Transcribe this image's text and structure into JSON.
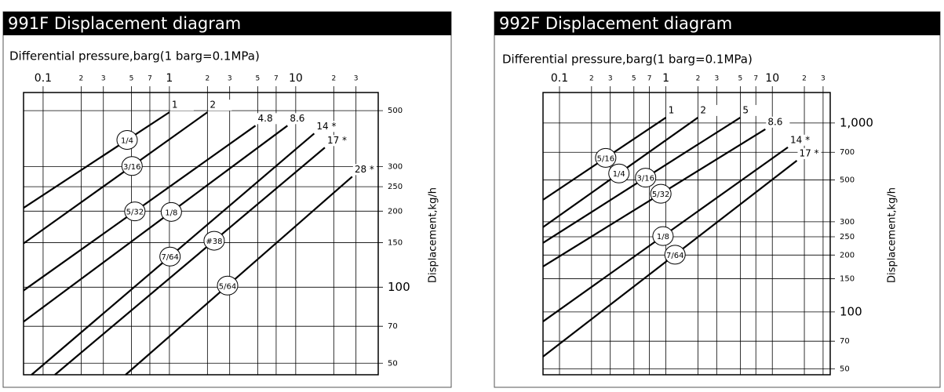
{
  "chart_data": [
    {
      "type": "line",
      "title": "991F Displacement diagram",
      "x_label": "Differential pressure,barg(1 barg=0.1MPa)",
      "y_label": "Displacement,kg/h",
      "xscale": "log",
      "yscale": "log",
      "grid": true,
      "color": "#000000",
      "xlim": [
        0.07,
        45
      ],
      "ylim": [
        45,
        590
      ],
      "xticks": [
        0.1,
        {
          "value": 0.2,
          "label": "2"
        },
        {
          "value": 0.3,
          "label": "3"
        },
        {
          "value": 0.5,
          "label": "5"
        },
        {
          "value": 0.7,
          "label": "7"
        },
        1,
        2,
        3,
        5,
        7,
        10,
        {
          "value": 20,
          "label": "2"
        },
        {
          "value": 30,
          "label": "3"
        }
      ],
      "yticks": [
        50,
        70,
        100,
        150,
        200,
        250,
        300,
        500
      ],
      "series": [
        {
          "name": "1/4",
          "end_label": "1",
          "x": [
            0.07,
            1
          ],
          "values": [
            206,
            493
          ]
        },
        {
          "name": "3/16",
          "end_label": "2",
          "x": [
            0.07,
            2
          ],
          "values": [
            149,
            493
          ]
        },
        {
          "name": "5/32",
          "end_label": "4.8",
          "x": [
            0.07,
            4.8
          ],
          "values": [
            97,
            436
          ]
        },
        {
          "name": "1/8",
          "end_label": "8.6",
          "x": [
            0.07,
            8.6
          ],
          "values": [
            73,
            436
          ]
        },
        {
          "name": "7/64",
          "end_label": "14 *",
          "x": [
            0.081,
            14
          ],
          "values": [
            45,
            406
          ]
        },
        {
          "name": "#38",
          "end_label": "17 *",
          "x": [
            0.124,
            17
          ],
          "values": [
            45,
            357
          ]
        },
        {
          "name": "5/64",
          "end_label": "28 *",
          "x": [
            0.45,
            28
          ],
          "values": [
            45,
            274
          ]
        }
      ]
    },
    {
      "type": "line",
      "title": "992F Displacement diagram",
      "x_label": "Differential pressure,barg(1 barg=0.1MPa)",
      "y_label": "Displacement,kg/h",
      "xscale": "log",
      "yscale": "log",
      "grid": true,
      "color": "#000000",
      "xlim": [
        0.07,
        35
      ],
      "ylim": [
        46.5,
        1450
      ],
      "xticks": [
        0.1,
        {
          "value": 0.2,
          "label": "2"
        },
        {
          "value": 0.3,
          "label": "3"
        },
        {
          "value": 0.5,
          "label": "5"
        },
        {
          "value": 0.7,
          "label": "7"
        },
        1,
        2,
        3,
        5,
        7,
        10,
        {
          "value": 20,
          "label": "2"
        },
        {
          "value": 30,
          "label": "3"
        }
      ],
      "yticks": [
        50,
        70,
        100,
        150,
        200,
        250,
        300,
        500,
        700,
        {
          "value": 1000,
          "label": "1,000"
        }
      ],
      "series": [
        {
          "name": "5/16",
          "end_label": "1",
          "x": [
            0.07,
            1
          ],
          "values": [
            392,
            1069
          ]
        },
        {
          "name": "1/4",
          "end_label": "2",
          "x": [
            0.07,
            2
          ],
          "values": [
            281,
            1069
          ]
        },
        {
          "name": "3/16",
          "end_label": "5",
          "x": [
            0.07,
            5
          ],
          "values": [
            232,
            1069
          ]
        },
        {
          "name": "5/32",
          "end_label": "8.6",
          "x": [
            0.07,
            8.6
          ],
          "values": [
            174,
            927
          ]
        },
        {
          "name": "1/8",
          "end_label": "14 *",
          "x": [
            0.07,
            14
          ],
          "values": [
            89,
            744
          ]
        },
        {
          "name": "7/64",
          "end_label": "17 *",
          "x": [
            0.07,
            17
          ],
          "values": [
            58,
            632
          ]
        }
      ]
    }
  ]
}
